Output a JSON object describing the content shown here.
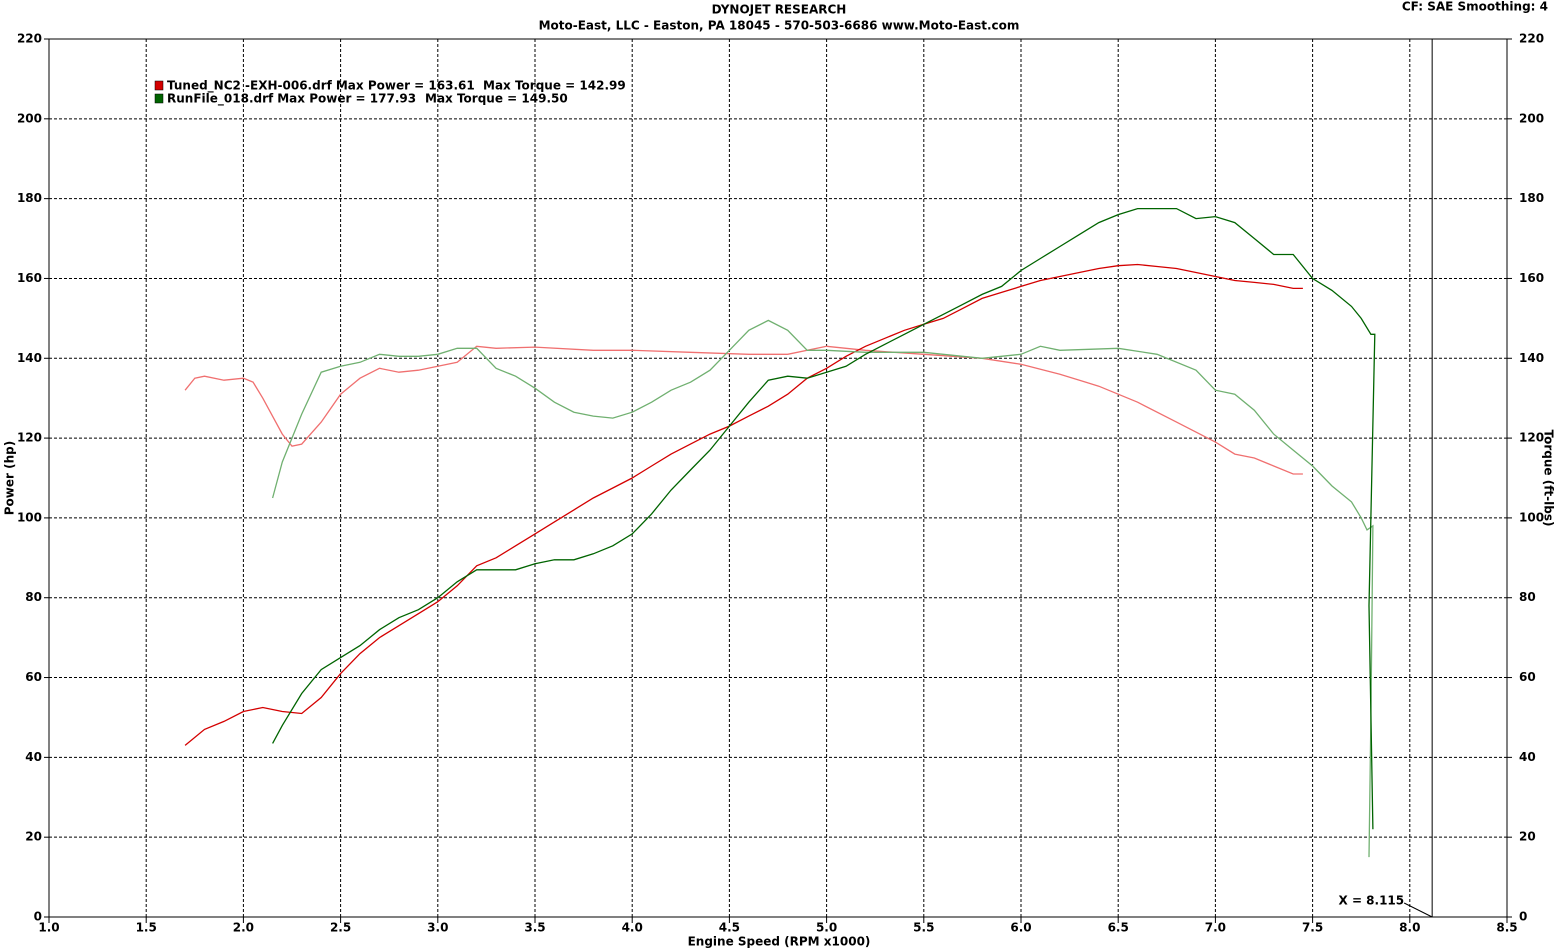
{
  "chart_data": {
    "type": "line",
    "title": "DYNOJET RESEARCH",
    "subtitle": "Moto-East, LLC - Easton, PA 18045 - 570-503-6686 www.Moto-East.com",
    "settings_text": "CF: SAE  Smoothing: 4",
    "x_label": "Engine Speed (RPM x1000)",
    "y_label": "Power (hp)",
    "y2_label": "Torque (ft-lbs)",
    "xlim": [
      1,
      8.5
    ],
    "xticks": [
      {
        "value": 1,
        "label": "1.0"
      },
      1.5,
      {
        "value": 2,
        "label": "2.0"
      },
      2.5,
      {
        "value": 3,
        "label": "3.0"
      },
      3.5,
      {
        "value": 4,
        "label": "4.0"
      },
      4.5,
      {
        "value": 5,
        "label": "5.0"
      },
      5.5,
      {
        "value": 6,
        "label": "6.0"
      },
      6.5,
      {
        "value": 7,
        "label": "7.0"
      },
      7.5,
      {
        "value": 8,
        "label": "8.0"
      },
      8.5
    ],
    "ylim": [
      0,
      220
    ],
    "yticks": [
      0,
      20,
      40,
      60,
      80,
      100,
      120,
      140,
      160,
      180,
      200,
      220
    ],
    "y2lim": [
      0,
      220
    ],
    "y2ticks": [
      0,
      20,
      40,
      60,
      80,
      100,
      120,
      140,
      160,
      180,
      200,
      220
    ],
    "grid": true,
    "cursor": {
      "value": 8.115,
      "label": "X = 8.115"
    },
    "runs": [
      {
        "name": "Tuned_NC2 -EXH-006.drf",
        "max_power": "Max Power = 163.61",
        "max_torque": "Max Torque = 142.99",
        "color": "#d40000",
        "torque_color": "#f07070",
        "power": {
          "axis": "y",
          "x": [
            1.7,
            1.8,
            1.9,
            2.0,
            2.1,
            2.2,
            2.3,
            2.4,
            2.5,
            2.6,
            2.7,
            2.8,
            2.9,
            3.0,
            3.1,
            3.2,
            3.3,
            3.4,
            3.5,
            3.6,
            3.7,
            3.8,
            3.9,
            4.0,
            4.1,
            4.2,
            4.3,
            4.4,
            4.5,
            4.6,
            4.7,
            4.8,
            4.9,
            5.0,
            5.1,
            5.2,
            5.3,
            5.4,
            5.5,
            5.6,
            5.7,
            5.8,
            5.9,
            6.0,
            6.1,
            6.2,
            6.3,
            6.4,
            6.5,
            6.6,
            6.7,
            6.8,
            6.9,
            7.0,
            7.1,
            7.2,
            7.3,
            7.4,
            7.45
          ],
          "values": [
            43,
            47,
            49,
            51.5,
            52.5,
            51.5,
            51,
            55,
            61,
            66,
            70,
            73,
            76,
            79,
            83,
            88,
            90,
            93,
            96,
            99,
            102,
            105,
            107.5,
            110,
            113,
            116,
            118.5,
            121,
            123,
            125.5,
            128,
            131,
            135,
            137.5,
            140.5,
            143,
            145,
            147,
            148.5,
            150,
            152.5,
            155,
            156.5,
            158,
            159.5,
            160.5,
            161.5,
            162.5,
            163.2,
            163.5,
            163,
            162.5,
            161.5,
            160.5,
            159.5,
            159,
            158.5,
            157.5,
            157.5
          ]
        },
        "torque": {
          "axis": "y2",
          "x": [
            1.7,
            1.75,
            1.8,
            1.9,
            2.0,
            2.05,
            2.1,
            2.2,
            2.25,
            2.3,
            2.4,
            2.5,
            2.6,
            2.7,
            2.8,
            2.9,
            3.0,
            3.1,
            3.2,
            3.3,
            3.5,
            3.8,
            4.0,
            4.3,
            4.6,
            4.8,
            5.0,
            5.2,
            5.5,
            5.8,
            6.0,
            6.2,
            6.4,
            6.5,
            6.6,
            6.8,
            7.0,
            7.1,
            7.2,
            7.3,
            7.4,
            7.45
          ],
          "values": [
            132,
            135,
            135.5,
            134.5,
            135,
            134,
            130,
            121,
            118,
            118.5,
            124,
            131,
            135,
            137.5,
            136.5,
            137,
            138,
            139,
            143,
            142.5,
            142.8,
            142,
            142,
            141.5,
            141,
            141,
            143,
            142,
            141,
            140,
            138.5,
            136,
            133,
            131,
            129,
            124,
            119,
            116,
            115,
            113,
            111,
            111
          ]
        }
      },
      {
        "name": "RunFile_018.drf",
        "max_power": "Max Power = 177.93",
        "max_torque": "Max Torque = 149.50",
        "color": "#006400",
        "torque_color": "#70b070",
        "power": {
          "axis": "y",
          "x": [
            2.15,
            2.2,
            2.3,
            2.4,
            2.5,
            2.6,
            2.7,
            2.8,
            2.9,
            3.0,
            3.1,
            3.2,
            3.3,
            3.4,
            3.5,
            3.6,
            3.7,
            3.8,
            3.9,
            4.0,
            4.1,
            4.2,
            4.3,
            4.4,
            4.5,
            4.6,
            4.7,
            4.8,
            4.9,
            5.0,
            5.1,
            5.2,
            5.3,
            5.4,
            5.5,
            5.6,
            5.7,
            5.8,
            5.9,
            6.0,
            6.1,
            6.2,
            6.3,
            6.4,
            6.5,
            6.6,
            6.7,
            6.8,
            6.9,
            7.0,
            7.1,
            7.2,
            7.3,
            7.4,
            7.5,
            7.6,
            7.7,
            7.75,
            7.8,
            7.82,
            7.79,
            7.81
          ],
          "values": [
            43.5,
            48,
            56,
            62,
            65,
            68,
            72,
            75,
            77,
            80,
            84,
            87,
            87,
            87,
            88.5,
            89.5,
            89.5,
            91,
            93,
            96,
            101,
            107,
            112,
            117,
            123,
            129,
            134.5,
            135.5,
            135,
            136.5,
            138,
            141,
            143.5,
            146,
            148.5,
            151,
            153.5,
            156,
            158,
            162,
            165,
            168,
            171,
            174,
            176,
            177.5,
            177.5,
            177.5,
            175,
            175.5,
            174,
            170,
            166,
            166,
            160,
            157,
            153,
            150,
            146,
            146,
            78,
            22
          ]
        },
        "torque": {
          "axis": "y2",
          "x": [
            2.15,
            2.2,
            2.3,
            2.4,
            2.5,
            2.6,
            2.7,
            2.8,
            2.9,
            3.0,
            3.1,
            3.2,
            3.3,
            3.4,
            3.5,
            3.6,
            3.7,
            3.8,
            3.9,
            4.0,
            4.1,
            4.2,
            4.3,
            4.4,
            4.5,
            4.6,
            4.7,
            4.8,
            4.9,
            5.0,
            5.2,
            5.5,
            5.8,
            6.0,
            6.1,
            6.2,
            6.5,
            6.7,
            6.9,
            7.0,
            7.1,
            7.2,
            7.3,
            7.4,
            7.5,
            7.6,
            7.7,
            7.75,
            7.78,
            7.81,
            7.8,
            7.79
          ],
          "values": [
            105,
            114,
            126,
            136.5,
            138,
            139,
            141,
            140.5,
            140.5,
            141,
            142.5,
            142.5,
            137.5,
            135.5,
            132.5,
            129,
            126.5,
            125.5,
            125,
            126.5,
            129,
            132,
            134,
            137,
            142,
            147,
            149.5,
            147,
            142,
            142,
            141.5,
            141.5,
            140,
            141,
            143,
            142,
            142.5,
            141,
            137,
            132,
            131,
            127,
            121,
            117,
            113,
            108,
            104,
            100,
            97,
            98,
            50,
            15
          ]
        }
      }
    ]
  }
}
